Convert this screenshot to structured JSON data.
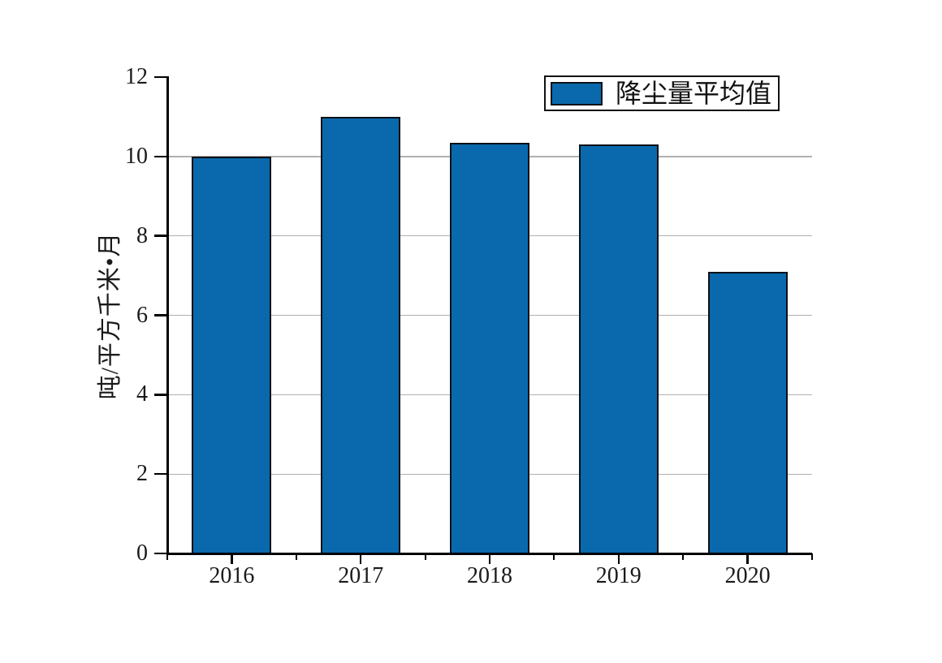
{
  "figure": {
    "background": "#ffffff"
  },
  "chart_data": {
    "type": "bar",
    "title": "",
    "categories": [
      "2016",
      "2017",
      "2018",
      "2019",
      "2020"
    ],
    "series": [
      {
        "name": "降尘量平均值",
        "values": [
          10.0,
          11.0,
          10.35,
          10.3,
          7.1
        ]
      }
    ],
    "xlabel": "",
    "ylabel": "吨/平方千米•月",
    "ylim": [
      0,
      12
    ],
    "yticks": [
      0,
      2,
      4,
      6,
      8,
      10,
      12
    ],
    "gridlines": [
      2,
      4,
      6,
      8,
      10
    ],
    "grid": "horizontal-only",
    "legend": {
      "position": "top-right-inside",
      "entries": [
        "降尘量平均值"
      ]
    },
    "colors": {
      "bar_fill": "#0a69ad",
      "bar_edge": "#0d1117",
      "grid_color": "#b0b0b0",
      "axis_color": "#000000",
      "text_color": "#1a1a1a"
    }
  }
}
